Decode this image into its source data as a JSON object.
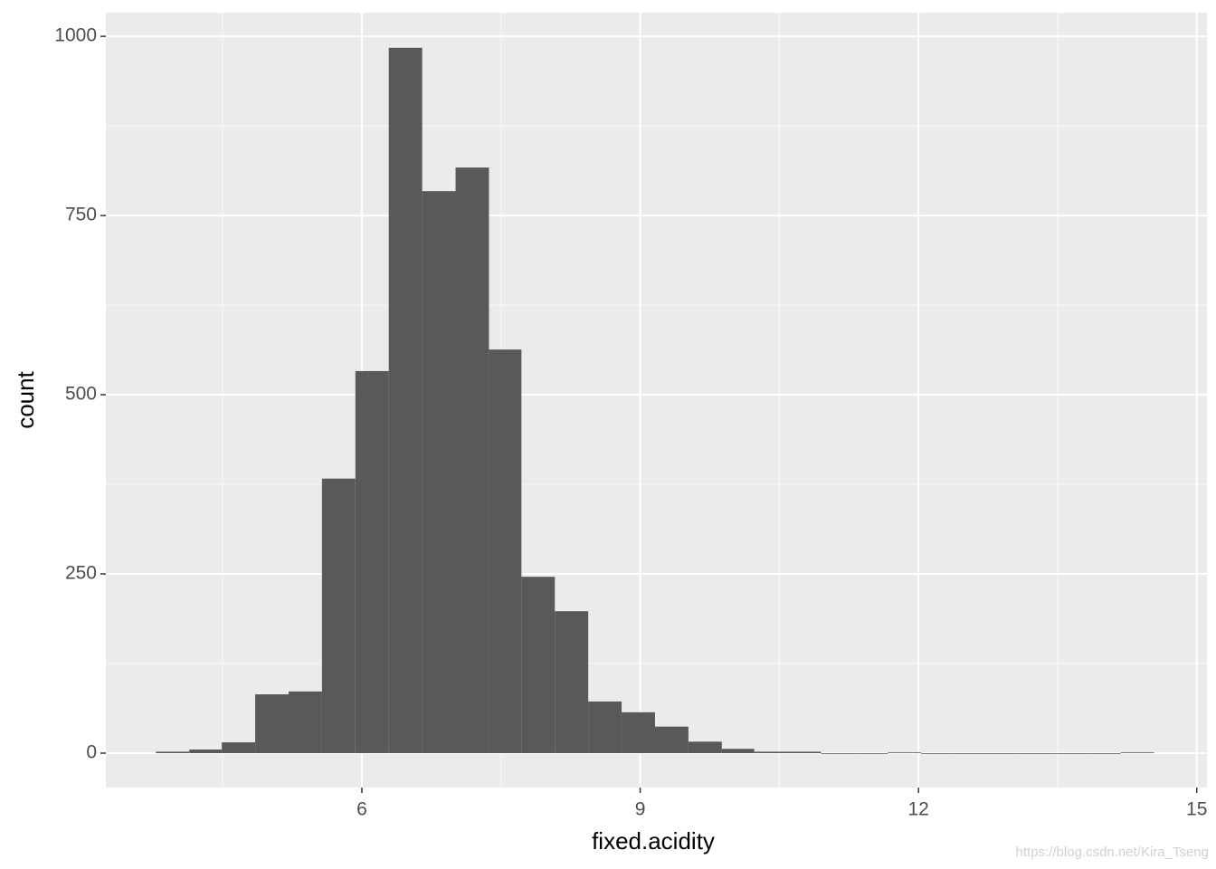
{
  "chart_data": {
    "type": "histogram",
    "xlabel": "fixed.acidity",
    "ylabel": "count",
    "bins": [
      3.78,
      4.14,
      4.49,
      4.85,
      5.21,
      5.57,
      5.93,
      6.29,
      6.65,
      7.01,
      7.37,
      7.72,
      8.08,
      8.44,
      8.8,
      9.16,
      9.52,
      9.88,
      10.23,
      10.59,
      10.95,
      11.31,
      11.67,
      12.03,
      12.39,
      12.74,
      13.1,
      13.46,
      13.82,
      14.18,
      14.54
    ],
    "values": [
      2,
      5,
      15,
      82,
      86,
      383,
      533,
      984,
      784,
      817,
      563,
      246,
      198,
      72,
      57,
      37,
      16,
      6,
      2,
      2,
      0,
      0,
      1,
      0,
      0,
      0,
      0,
      0,
      0,
      1
    ],
    "color": "#595959",
    "xlim": [
      3.24,
      15.11
    ],
    "xticks": [
      6,
      9,
      12,
      15
    ],
    "ylim": [
      -48,
      1033
    ],
    "yticks": [
      0,
      250,
      500,
      750,
      1000
    ],
    "grid": true,
    "watermark": "https://blog.csdn.net/Kira_Tseng"
  }
}
